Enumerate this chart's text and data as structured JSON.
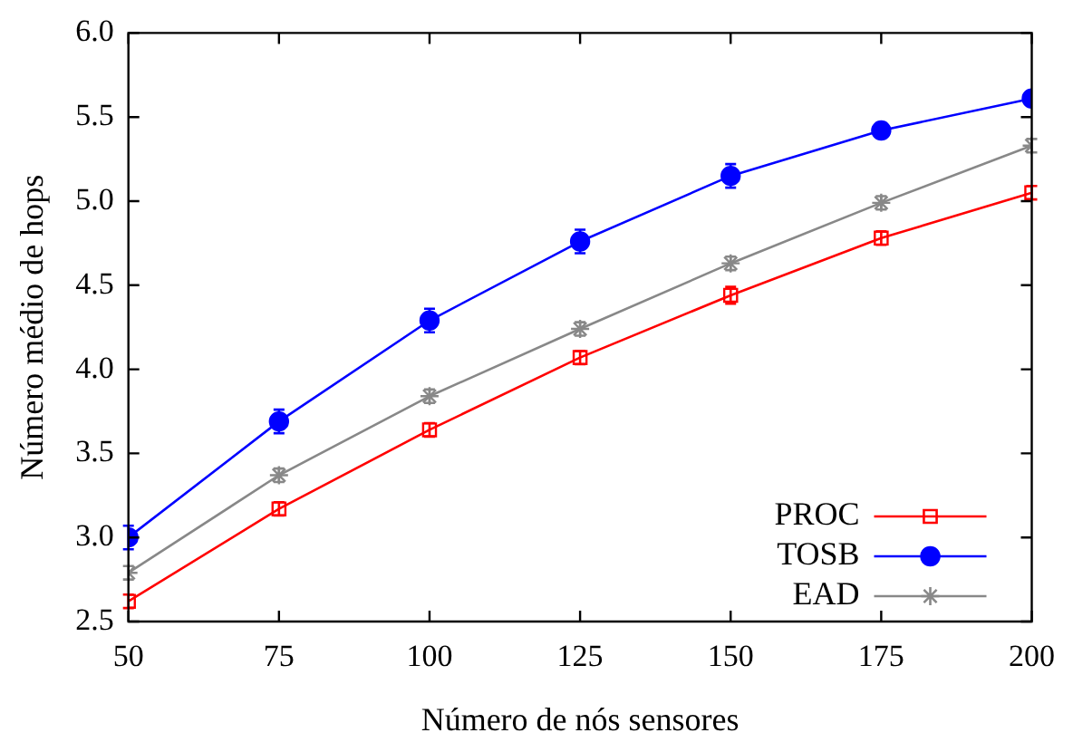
{
  "chart_data": {
    "type": "line",
    "xlabel": "Número de nós sensores",
    "ylabel": "Número médio de hops",
    "x": [
      50,
      75,
      100,
      125,
      150,
      175,
      200
    ],
    "xlim": [
      50,
      200
    ],
    "xticks": [
      50,
      75,
      100,
      125,
      150,
      175,
      200
    ],
    "ylim": [
      2.5,
      6.0
    ],
    "yticks": [
      {
        "value": 2.5,
        "label": "2.5"
      },
      {
        "value": 3.0,
        "label": "3.0"
      },
      {
        "value": 3.5,
        "label": "3.5"
      },
      {
        "value": 4.0,
        "label": "4.0"
      },
      {
        "value": 4.5,
        "label": "4.5"
      },
      {
        "value": 5.0,
        "label": "5.0"
      },
      {
        "value": 5.5,
        "label": "5.5"
      },
      {
        "value": 6.0,
        "label": "6.0"
      }
    ],
    "grid": false,
    "legend": "bottom right",
    "line_style": "solid",
    "series": [
      {
        "name": "PROC",
        "color": "#ff0000",
        "marker": "square",
        "values": [
          2.62,
          3.17,
          3.64,
          4.07,
          4.44,
          4.78,
          5.05
        ],
        "errors": [
          0.04,
          0.04,
          0.04,
          0.04,
          0.05,
          0.04,
          0.04
        ]
      },
      {
        "name": "TOSB",
        "color": "#0000ff",
        "marker": "circle",
        "values": [
          3.0,
          3.69,
          4.29,
          4.76,
          5.15,
          5.42,
          5.61
        ],
        "errors": [
          0.07,
          0.07,
          0.07,
          0.07,
          0.07,
          null,
          null
        ]
      },
      {
        "name": "EAD",
        "color": "#888888",
        "marker": "cross",
        "values": [
          2.79,
          3.37,
          3.84,
          4.24,
          4.63,
          4.99,
          5.33
        ],
        "errors": [
          0.04,
          0.04,
          0.04,
          0.04,
          0.04,
          0.04,
          0.04
        ]
      }
    ]
  }
}
